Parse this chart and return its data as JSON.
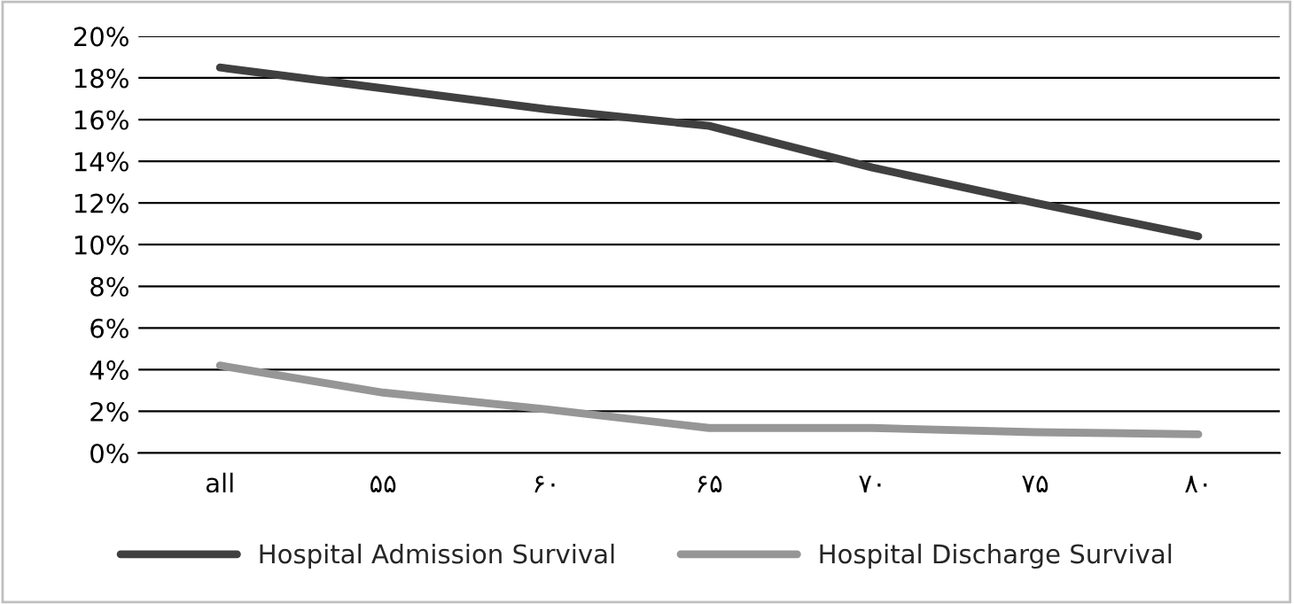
{
  "chart_data": {
    "type": "line",
    "categories": [
      "all",
      "۵۵",
      "۶۰",
      "۶۵",
      "۷۰",
      "۷۵",
      "۸۰"
    ],
    "series": [
      {
        "name": "Hospital Admission Survival",
        "color": "#404040",
        "values": [
          18.5,
          17.5,
          16.5,
          15.7,
          13.7,
          12.0,
          10.4
        ]
      },
      {
        "name": "Hospital Discharge Survival",
        "color": "#969696",
        "values": [
          4.2,
          2.9,
          2.1,
          1.2,
          1.2,
          1.0,
          0.9
        ]
      }
    ],
    "ylim": [
      0,
      20
    ],
    "yticks": [
      {
        "value": 0,
        "label": "0%"
      },
      {
        "value": 2,
        "label": "2%"
      },
      {
        "value": 4,
        "label": "4%"
      },
      {
        "value": 6,
        "label": "6%"
      },
      {
        "value": 8,
        "label": "8%"
      },
      {
        "value": 10,
        "label": "10%"
      },
      {
        "value": 12,
        "label": "12%"
      },
      {
        "value": 14,
        "label": "14%"
      },
      {
        "value": 16,
        "label": "16%"
      },
      {
        "value": 18,
        "label": "18%"
      },
      {
        "value": 20,
        "label": "20%"
      }
    ],
    "grid": "y",
    "legend": "bottom",
    "marker": "none",
    "line_style": "solid"
  }
}
